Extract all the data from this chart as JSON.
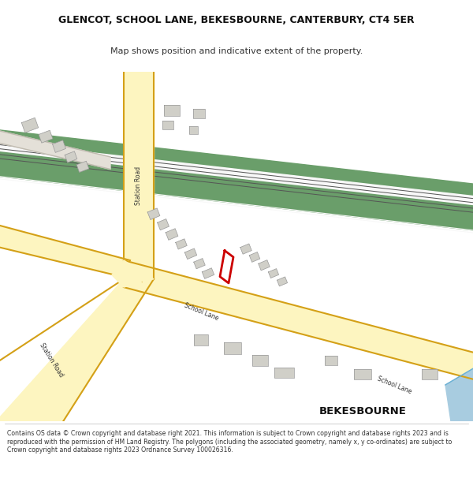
{
  "title": "GLENCOT, SCHOOL LANE, BEKESBOURNE, CANTERBURY, CT4 5ER",
  "subtitle": "Map shows position and indicative extent of the property.",
  "footer": "Contains OS data © Crown copyright and database right 2021. This information is subject to Crown copyright and database rights 2023 and is reproduced with the permission of HM Land Registry. The polygons (including the associated geometry, namely x, y co-ordinates) are subject to Crown copyright and database rights 2023 Ordnance Survey 100026316.",
  "map_bg": "#f2f0eb",
  "railway_green": "#6a9e6a",
  "road_outline": "#d4a017",
  "road_fill": "#fdf5c0",
  "building_color": "#c8c8c8",
  "building_edge": "#999999",
  "water_color": "#a8cce0",
  "red_plot": "#cc0000",
  "text_color": "#333333"
}
